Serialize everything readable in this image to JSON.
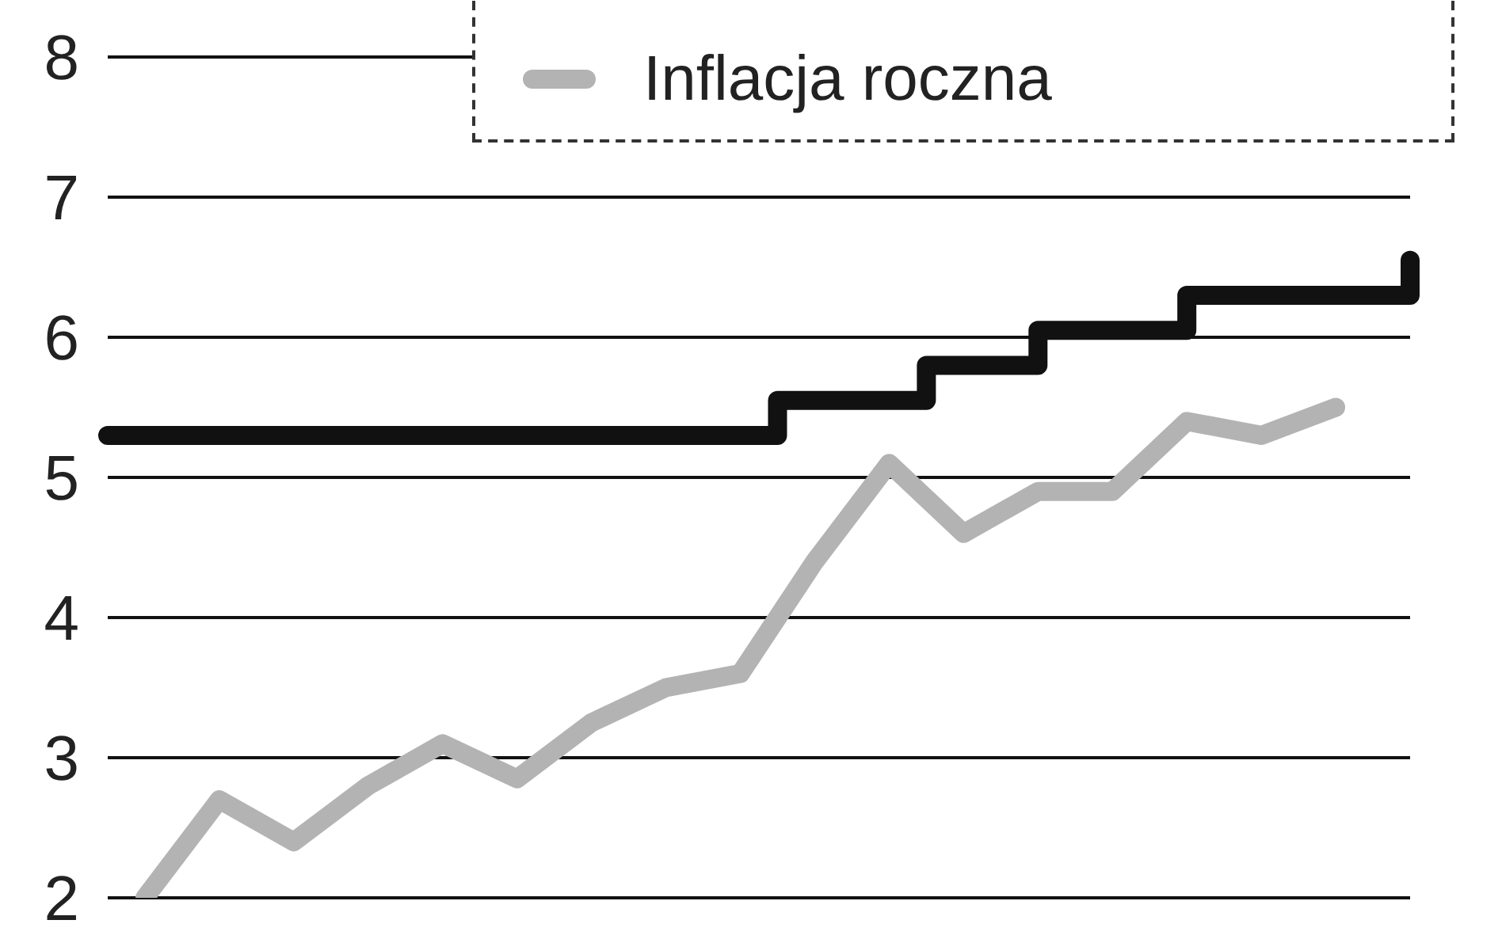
{
  "chart_data": {
    "type": "line",
    "categories": [
      null,
      null,
      null,
      null,
      null,
      null,
      null,
      null,
      null,
      null,
      null,
      null,
      null,
      null,
      null,
      null,
      null,
      null,
      null,
      null,
      null,
      null,
      null,
      null,
      null,
      null,
      null,
      null,
      null,
      null,
      null,
      null,
      null,
      null,
      null,
      null
    ],
    "series": [
      {
        "type": "step",
        "color": "#111111",
        "values": [
          5.3,
          5.3,
          5.3,
          5.3,
          5.3,
          5.3,
          5.3,
          5.3,
          5.3,
          5.3,
          5.3,
          5.3,
          5.3,
          5.3,
          5.3,
          5.3,
          5.3,
          5.3,
          5.55,
          5.55,
          5.55,
          5.55,
          5.8,
          5.8,
          5.8,
          6.05,
          6.05,
          6.05,
          6.05,
          6.3,
          6.3,
          6.3,
          6.3,
          6.3,
          6.3,
          6.55
        ]
      },
      {
        "name": "Inflacja roczna",
        "color": "#b3b3b3",
        "values": [
          null,
          2.0,
          null,
          2.7,
          null,
          2.4,
          null,
          2.8,
          null,
          3.1,
          null,
          2.85,
          null,
          3.25,
          null,
          3.5,
          null,
          3.6,
          null,
          4.4,
          null,
          5.1,
          null,
          4.6,
          null,
          4.9,
          null,
          4.9,
          null,
          5.4,
          null,
          5.3,
          null,
          5.5,
          null,
          null
        ]
      }
    ],
    "ylim": [
      2,
      8
    ],
    "yticks": [
      2,
      3,
      4,
      5,
      6,
      7,
      8
    ],
    "grid": "y",
    "legend": "top right",
    "marker": "none",
    "line_style": "solid"
  }
}
